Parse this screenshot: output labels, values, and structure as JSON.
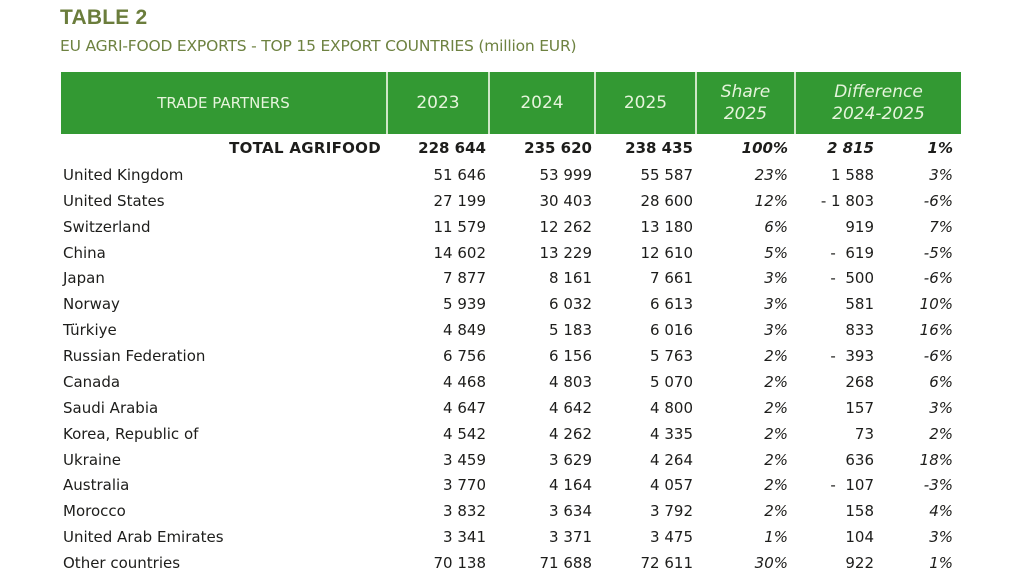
{
  "title": "TABLE 2",
  "subtitle": "EU AGRI-FOOD EXPORTS - TOP 15 EXPORT COUNTRIES (million EUR)",
  "colors": {
    "header_bg": "#339933",
    "header_text": "#e6f4dc",
    "title": "#6b7d3c"
  },
  "header": {
    "partners": "TRADE PARTNERS",
    "y2023": "2023",
    "y2024": "2024",
    "y2025": "2025",
    "share_line1": "Share",
    "share_line2": "2025",
    "diff_line1": "Difference",
    "diff_line2": "2024-2025"
  },
  "total": {
    "label": "TOTAL AGRIFOOD",
    "y2023": "228 644",
    "y2024": "235 620",
    "y2025": "238 435",
    "share": "100%",
    "diff": "2 815",
    "pct": "1%"
  },
  "rows": [
    {
      "name": "United Kingdom",
      "y2023": "51 646",
      "y2024": "53 999",
      "y2025": "55 587",
      "share": "23%",
      "diff": "1 588",
      "pct": "3%"
    },
    {
      "name": "United States",
      "y2023": "27 199",
      "y2024": "30 403",
      "y2025": "28 600",
      "share": "12%",
      "diff": "- 1 803",
      "pct": "-6%"
    },
    {
      "name": "Switzerland",
      "y2023": "11 579",
      "y2024": "12 262",
      "y2025": "13 180",
      "share": "6%",
      "diff": "919",
      "pct": "7%"
    },
    {
      "name": "China",
      "y2023": "14 602",
      "y2024": "13 229",
      "y2025": "12 610",
      "share": "5%",
      "diff": "-  619",
      "pct": "-5%"
    },
    {
      "name": "Japan",
      "y2023": "7 877",
      "y2024": "8 161",
      "y2025": "7 661",
      "share": "3%",
      "diff": "-  500",
      "pct": "-6%"
    },
    {
      "name": "Norway",
      "y2023": "5 939",
      "y2024": "6 032",
      "y2025": "6 613",
      "share": "3%",
      "diff": "581",
      "pct": "10%"
    },
    {
      "name": "Türkiye",
      "y2023": "4 849",
      "y2024": "5 183",
      "y2025": "6 016",
      "share": "3%",
      "diff": "833",
      "pct": "16%"
    },
    {
      "name": "Russian Federation",
      "y2023": "6 756",
      "y2024": "6 156",
      "y2025": "5 763",
      "share": "2%",
      "diff": "-  393",
      "pct": "-6%"
    },
    {
      "name": "Canada",
      "y2023": "4 468",
      "y2024": "4 803",
      "y2025": "5 070",
      "share": "2%",
      "diff": "268",
      "pct": "6%"
    },
    {
      "name": "Saudi Arabia",
      "y2023": "4 647",
      "y2024": "4 642",
      "y2025": "4 800",
      "share": "2%",
      "diff": "157",
      "pct": "3%"
    },
    {
      "name": "Korea, Republic of",
      "y2023": "4 542",
      "y2024": "4 262",
      "y2025": "4 335",
      "share": "2%",
      "diff": "73",
      "pct": "2%"
    },
    {
      "name": "Ukraine",
      "y2023": "3 459",
      "y2024": "3 629",
      "y2025": "4 264",
      "share": "2%",
      "diff": "636",
      "pct": "18%"
    },
    {
      "name": "Australia",
      "y2023": "3 770",
      "y2024": "4 164",
      "y2025": "4 057",
      "share": "2%",
      "diff": "-  107",
      "pct": "-3%"
    },
    {
      "name": "Morocco",
      "y2023": "3 832",
      "y2024": "3 634",
      "y2025": "3 792",
      "share": "2%",
      "diff": "158",
      "pct": "4%"
    },
    {
      "name": "United Arab Emirates",
      "y2023": "3 341",
      "y2024": "3 371",
      "y2025": "3 475",
      "share": "1%",
      "diff": "104",
      "pct": "3%"
    },
    {
      "name": "Other countries",
      "y2023": "70 138",
      "y2024": "71 688",
      "y2025": "72 611",
      "share": "30%",
      "diff": "922",
      "pct": "1%"
    }
  ]
}
